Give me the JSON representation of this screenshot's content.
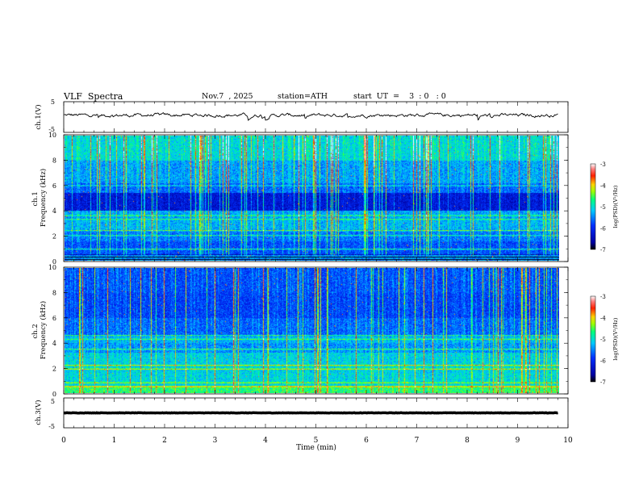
{
  "header": {
    "title": "VLF  Spectra",
    "date": "Nov.7  , 2025",
    "station": "station=ATH",
    "start_ut": "start  UT  =    3  : 0   : 0"
  },
  "chart_data": [
    {
      "type": "line",
      "name": "ch1-waveform",
      "ylabel": "ch.1(V)",
      "ylim": [
        -5,
        5
      ],
      "yticks": [
        "5",
        "-5"
      ],
      "xlim": [
        0,
        10
      ],
      "mean_level": 0.6,
      "fluctuation": 1.2
    },
    {
      "type": "heatmap",
      "name": "ch1-spectrogram",
      "ylabel": "ch.1  Frequency (kHz)",
      "ylim": [
        0,
        10
      ],
      "yticks": [
        "0",
        "2",
        "4",
        "6",
        "8",
        "10"
      ],
      "xlim": [
        0,
        9.8
      ],
      "colorbar": {
        "label": "log(PSD)(V²/Hz)",
        "range": [
          -7,
          -3
        ],
        "ticks": [
          "-3",
          "-4",
          "-5",
          "-6",
          "-7"
        ],
        "colors": [
          "#000000",
          "#0000cc",
          "#00a0ff",
          "#00ff80",
          "#ffd000",
          "#ff0000",
          "#ffffff"
        ]
      }
    },
    {
      "type": "heatmap",
      "name": "ch2-spectrogram",
      "ylabel": "ch.2  Frequency (kHz)",
      "ylim": [
        0,
        10
      ],
      "yticks": [
        "0",
        "2",
        "4",
        "6",
        "8",
        "10"
      ],
      "xlim": [
        0,
        9.8
      ],
      "colorbar": {
        "label": "log(PSD)(V²/Hz)",
        "range": [
          -7,
          -3
        ],
        "ticks": [
          "-3",
          "-4",
          "-5",
          "-6",
          "-7"
        ],
        "colors": [
          "#000000",
          "#0000cc",
          "#00a0ff",
          "#00ff80",
          "#ffd000",
          "#ff0000",
          "#ffffff"
        ]
      }
    },
    {
      "type": "line",
      "name": "ch3-waveform",
      "ylabel": "ch.3(V)",
      "ylim": [
        -5,
        5
      ],
      "yticks": [
        "5",
        "-5"
      ],
      "xlim": [
        0,
        10
      ],
      "mean_level": 0.0,
      "fluctuation": 0.1
    }
  ],
  "xaxis": {
    "label": "Time  (min)",
    "range": [
      0,
      10
    ],
    "ticks": [
      "0",
      "1",
      "2",
      "3",
      "4",
      "5",
      "6",
      "7",
      "8",
      "9",
      "10"
    ]
  }
}
